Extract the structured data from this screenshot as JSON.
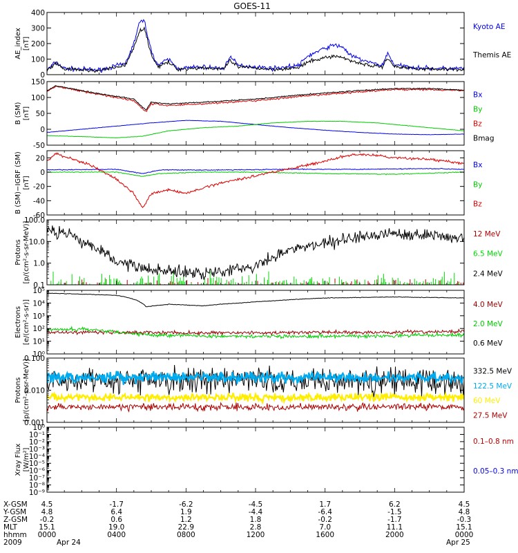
{
  "title": "GOES-11",
  "chart_data": [
    {
      "type": "line",
      "ylabel": [
        "AE_index",
        "[nT]"
      ],
      "yscale": "linear",
      "ylim": [
        0,
        400
      ],
      "yticks": [
        0,
        100,
        200,
        300,
        400
      ],
      "ytick_labels": [
        "0",
        "100",
        "200",
        "300",
        "400"
      ],
      "series": [
        {
          "name": "Kyoto AE",
          "color": "#0000ee",
          "noise": 12,
          "points": [
            [
              0,
              30
            ],
            [
              0.5,
              80
            ],
            [
              1,
              40
            ],
            [
              3,
              30
            ],
            [
              4.5,
              70
            ],
            [
              5,
              200
            ],
            [
              5.3,
              330
            ],
            [
              5.6,
              350
            ],
            [
              6,
              150
            ],
            [
              6.4,
              60
            ],
            [
              7,
              100
            ],
            [
              7.5,
              40
            ],
            [
              9,
              50
            ],
            [
              10.2,
              40
            ],
            [
              10.5,
              120
            ],
            [
              11,
              60
            ],
            [
              13,
              40
            ],
            [
              14.5,
              60
            ],
            [
              15,
              120
            ],
            [
              16,
              170
            ],
            [
              16.5,
              190
            ],
            [
              17,
              180
            ],
            [
              17.5,
              120
            ],
            [
              18.5,
              80
            ],
            [
              19.3,
              60
            ],
            [
              19.6,
              140
            ],
            [
              20,
              60
            ],
            [
              22,
              40
            ],
            [
              24,
              40
            ]
          ]
        },
        {
          "name": "Themis AE",
          "color": "#000000",
          "noise": 10,
          "points": [
            [
              0,
              25
            ],
            [
              0.5,
              70
            ],
            [
              1,
              35
            ],
            [
              3,
              25
            ],
            [
              4.5,
              60
            ],
            [
              5,
              170
            ],
            [
              5.3,
              280
            ],
            [
              5.6,
              300
            ],
            [
              6,
              130
            ],
            [
              6.4,
              50
            ],
            [
              7,
              80
            ],
            [
              7.5,
              35
            ],
            [
              9,
              45
            ],
            [
              10.2,
              35
            ],
            [
              10.5,
              90
            ],
            [
              11,
              50
            ],
            [
              13,
              35
            ],
            [
              14.5,
              45
            ],
            [
              15,
              80
            ],
            [
              16,
              110
            ],
            [
              16.5,
              120
            ],
            [
              17,
              110
            ],
            [
              17.5,
              90
            ],
            [
              18.5,
              60
            ],
            [
              19.3,
              50
            ],
            [
              19.6,
              110
            ],
            [
              20,
              50
            ],
            [
              22,
              35
            ],
            [
              24,
              35
            ]
          ]
        }
      ]
    },
    {
      "type": "line",
      "ylabel": [
        "B (SM)",
        "[nT]"
      ],
      "yscale": "linear",
      "ylim": [
        -50,
        150
      ],
      "yticks": [
        -50,
        0,
        50,
        100,
        150
      ],
      "ytick_labels": [
        "-50",
        "0",
        "50",
        "100",
        "150"
      ],
      "series": [
        {
          "name": "Bx",
          "color": "#0000ee",
          "noise": 0.5,
          "points": [
            [
              0,
              -10
            ],
            [
              3,
              5
            ],
            [
              6,
              20
            ],
            [
              8,
              28
            ],
            [
              10,
              25
            ],
            [
              12,
              15
            ],
            [
              14,
              5
            ],
            [
              16,
              -3
            ],
            [
              18,
              -10
            ],
            [
              20,
              -15
            ],
            [
              22,
              -17
            ],
            [
              24,
              -15
            ]
          ]
        },
        {
          "name": "By",
          "color": "#00cc00",
          "noise": 0.5,
          "points": [
            [
              0,
              -20
            ],
            [
              2,
              -23
            ],
            [
              4,
              -27
            ],
            [
              5.5,
              -22
            ],
            [
              7,
              -5
            ],
            [
              9,
              5
            ],
            [
              11,
              10
            ],
            [
              13,
              20
            ],
            [
              15,
              25
            ],
            [
              17,
              25
            ],
            [
              19,
              20
            ],
            [
              21,
              10
            ],
            [
              23,
              0
            ],
            [
              24,
              -5
            ]
          ]
        },
        {
          "name": "Bz",
          "color": "#dd0000",
          "noise": 2.5,
          "points": [
            [
              0,
              118
            ],
            [
              0.5,
              135
            ],
            [
              1,
              130
            ],
            [
              3,
              110
            ],
            [
              5,
              90
            ],
            [
              5.7,
              55
            ],
            [
              6,
              80
            ],
            [
              7,
              75
            ],
            [
              9,
              80
            ],
            [
              12,
              90
            ],
            [
              15,
              105
            ],
            [
              18,
              118
            ],
            [
              20,
              125
            ],
            [
              22,
              125
            ],
            [
              24,
              122
            ]
          ]
        },
        {
          "name": "Bmag",
          "color": "#000000",
          "noise": 1.5,
          "points": [
            [
              0,
              120
            ],
            [
              0.5,
              137
            ],
            [
              1,
              132
            ],
            [
              3,
              112
            ],
            [
              5,
              95
            ],
            [
              5.7,
              60
            ],
            [
              6,
              85
            ],
            [
              7,
              80
            ],
            [
              9,
              85
            ],
            [
              12,
              95
            ],
            [
              15,
              110
            ],
            [
              18,
              122
            ],
            [
              20,
              128
            ],
            [
              22,
              128
            ],
            [
              24,
              123
            ]
          ]
        }
      ]
    },
    {
      "type": "line",
      "ylabel": [
        "B (SM)−IGRF (SM)",
        "[nT]"
      ],
      "yscale": "linear",
      "ylim": [
        -60,
        30
      ],
      "yticks": [
        -60,
        -40,
        -20,
        0,
        20
      ],
      "ytick_labels": [
        "-60",
        "-40",
        "-20",
        "0",
        "20"
      ],
      "series": [
        {
          "name": "Bx",
          "color": "#0000ee",
          "noise": 0.5,
          "points": [
            [
              0,
              3
            ],
            [
              4,
              4
            ],
            [
              5.5,
              -2
            ],
            [
              6.5,
              3
            ],
            [
              10,
              3
            ],
            [
              14,
              4
            ],
            [
              18,
              4
            ],
            [
              22,
              5
            ],
            [
              24,
              4
            ]
          ]
        },
        {
          "name": "By",
          "color": "#00cc00",
          "noise": 0.5,
          "points": [
            [
              0,
              0
            ],
            [
              4,
              0
            ],
            [
              5.5,
              -6
            ],
            [
              6.5,
              -2
            ],
            [
              9,
              0
            ],
            [
              12,
              0
            ],
            [
              16,
              -2
            ],
            [
              20,
              -3
            ],
            [
              24,
              0
            ]
          ]
        },
        {
          "name": "Bz",
          "color": "#dd0000",
          "noise": 1.5,
          "points": [
            [
              0,
              15
            ],
            [
              0.5,
              26
            ],
            [
              1,
              22
            ],
            [
              2.5,
              10
            ],
            [
              4,
              -10
            ],
            [
              5,
              -30
            ],
            [
              5.5,
              -50
            ],
            [
              6,
              -30
            ],
            [
              7,
              -25
            ],
            [
              8,
              -30
            ],
            [
              9,
              -22
            ],
            [
              10,
              -15
            ],
            [
              12,
              -5
            ],
            [
              14,
              5
            ],
            [
              16,
              15
            ],
            [
              17,
              22
            ],
            [
              18,
              25
            ],
            [
              19,
              23
            ],
            [
              20,
              20
            ],
            [
              22,
              18
            ],
            [
              24,
              12
            ]
          ]
        }
      ]
    },
    {
      "type": "line",
      "ylabel": [
        "Protons",
        "[p/(cm²-s-sr-MeV)]"
      ],
      "yscale": "log",
      "ylim": [
        0.1,
        100
      ],
      "yticks": [
        0.1,
        1,
        10,
        100
      ],
      "ytick_labels": [
        "0.1",
        "1.0",
        "10.0",
        "100.0"
      ],
      "series": [
        {
          "name": "12 MeV",
          "color": "#b00000",
          "style": "spikes",
          "base": 0.1,
          "max": 0.22,
          "density": 0.35
        },
        {
          "name": "6.5 MeV",
          "color": "#00dd00",
          "style": "spikes",
          "base": 0.1,
          "max": 0.5,
          "density": 0.55
        },
        {
          "name": "2.4 MeV",
          "color": "#000000",
          "noise_log": 0.25,
          "points": [
            [
              0,
              30
            ],
            [
              1,
              25
            ],
            [
              2,
              10
            ],
            [
              3,
              4
            ],
            [
              4,
              1
            ],
            [
              5,
              0.7
            ],
            [
              6,
              0.5
            ],
            [
              8,
              0.4
            ],
            [
              10,
              0.4
            ],
            [
              12,
              0.8
            ],
            [
              13,
              1.5
            ],
            [
              14,
              4
            ],
            [
              16,
              8
            ],
            [
              18,
              15
            ],
            [
              20,
              25
            ],
            [
              22,
              20
            ],
            [
              24,
              15
            ]
          ]
        }
      ]
    },
    {
      "type": "line",
      "ylabel": [
        "Electrons",
        "[e/(cm²-s-sr)]"
      ],
      "yscale": "log",
      "ylim": [
        1,
        100000
      ],
      "yticks": [
        1,
        10,
        100,
        1000,
        10000,
        100000
      ],
      "ytick_labels": [
        "10⁰",
        "10¹",
        "10²",
        "10³",
        "10⁴",
        "10⁵"
      ],
      "series": [
        {
          "name": "4.0 MeV",
          "color": "#990000",
          "noise_log": 0.12,
          "points": [
            [
              0,
              50
            ],
            [
              4,
              50
            ],
            [
              8,
              45
            ],
            [
              12,
              45
            ],
            [
              16,
              50
            ],
            [
              20,
              50
            ],
            [
              24,
              60
            ]
          ]
        },
        {
          "name": "2.0 MeV",
          "color": "#00cc00",
          "noise_log": 0.12,
          "points": [
            [
              0,
              80
            ],
            [
              2,
              90
            ],
            [
              4,
              50
            ],
            [
              6,
              30
            ],
            [
              10,
              25
            ],
            [
              14,
              25
            ],
            [
              18,
              25
            ],
            [
              22,
              30
            ],
            [
              24,
              30
            ]
          ]
        },
        {
          "name": "0.6 MeV",
          "color": "#000000",
          "noise_log": 0.02,
          "points": [
            [
              0,
              60000
            ],
            [
              2,
              50000
            ],
            [
              4,
              40000
            ],
            [
              5.7,
              5000
            ],
            [
              7,
              8000
            ],
            [
              9,
              6000
            ],
            [
              11,
              10000
            ],
            [
              13,
              15000
            ],
            [
              16,
              25000
            ],
            [
              20,
              30000
            ],
            [
              24,
              25000
            ]
          ]
        }
      ]
    },
    {
      "type": "line",
      "ylabel": [
        "Protons",
        "[p/(cm²-s-sr-MeV)]"
      ],
      "yscale": "log",
      "ylim": [
        0.001,
        0.1
      ],
      "yticks": [
        0.001,
        0.01,
        0.1
      ],
      "ytick_labels": [
        "0.001",
        "0.010",
        "0.100"
      ],
      "series": [
        {
          "name": "332.5 MeV",
          "color": "#000000",
          "noise_log": 0.35,
          "points": [
            [
              0,
              0.02
            ],
            [
              24,
              0.02
            ]
          ]
        },
        {
          "name": "122.5 MeV",
          "color": "#00aaee",
          "noise_log": 0.14,
          "width": 2.2,
          "points": [
            [
              0,
              0.025
            ],
            [
              24,
              0.025
            ]
          ]
        },
        {
          "name": "60 MeV",
          "color": "#ffee00",
          "noise_log": 0.1,
          "width": 2.2,
          "points": [
            [
              0,
              0.006
            ],
            [
              24,
              0.006
            ]
          ]
        },
        {
          "name": "27.5 MeV",
          "color": "#aa0000",
          "noise_log": 0.09,
          "points": [
            [
              0,
              0.003
            ],
            [
              24,
              0.003
            ]
          ]
        }
      ]
    },
    {
      "type": "line",
      "ylabel": [
        "Xray  Flux",
        "[W/m²]"
      ],
      "yscale": "log",
      "ylim": [
        1e-09,
        1
      ],
      "yticks": [
        1e-09,
        1e-08,
        1e-07,
        1e-06,
        1e-05,
        0.0001,
        0.001,
        0.01,
        0.1,
        1
      ],
      "ytick_labels": [
        "10⁻⁹",
        "10⁻⁸",
        "10⁻⁷",
        "10⁻⁶",
        "10⁻⁵",
        "10⁻⁴",
        "10⁻³",
        "10⁻²",
        "10⁻¹",
        "10⁰"
      ],
      "series": [
        {
          "name": "0.1–0.8 nm",
          "color": "#bb0000"
        },
        {
          "name": "0.05–0.3 nm",
          "color": "#0000ee"
        }
      ]
    }
  ],
  "ephemeris": {
    "row_labels": [
      "X-GSM",
      "Y-GSM",
      "Z-GSM",
      "MLT",
      "hhmm",
      "2009"
    ],
    "columns": [
      [
        "4.5",
        "4.8",
        "-0.2",
        "15.1",
        "0000",
        "Apr 24"
      ],
      [
        "-1.7",
        "6.4",
        "0.6",
        "19.0",
        "0400",
        ""
      ],
      [
        "-6.2",
        "1.9",
        "1.2",
        "22.9",
        "0800",
        ""
      ],
      [
        "-4.5",
        "-4.4",
        "1.8",
        "2.8",
        "1200",
        ""
      ],
      [
        "1.7",
        "-6.4",
        "-0.2",
        "7.0",
        "1600",
        ""
      ],
      [
        "6.2",
        "-1.5",
        "-1.7",
        "11.1",
        "2000",
        ""
      ],
      [
        "4.5",
        "4.8",
        "-0.3",
        "15.1",
        "0000",
        "Apr 25"
      ]
    ]
  }
}
